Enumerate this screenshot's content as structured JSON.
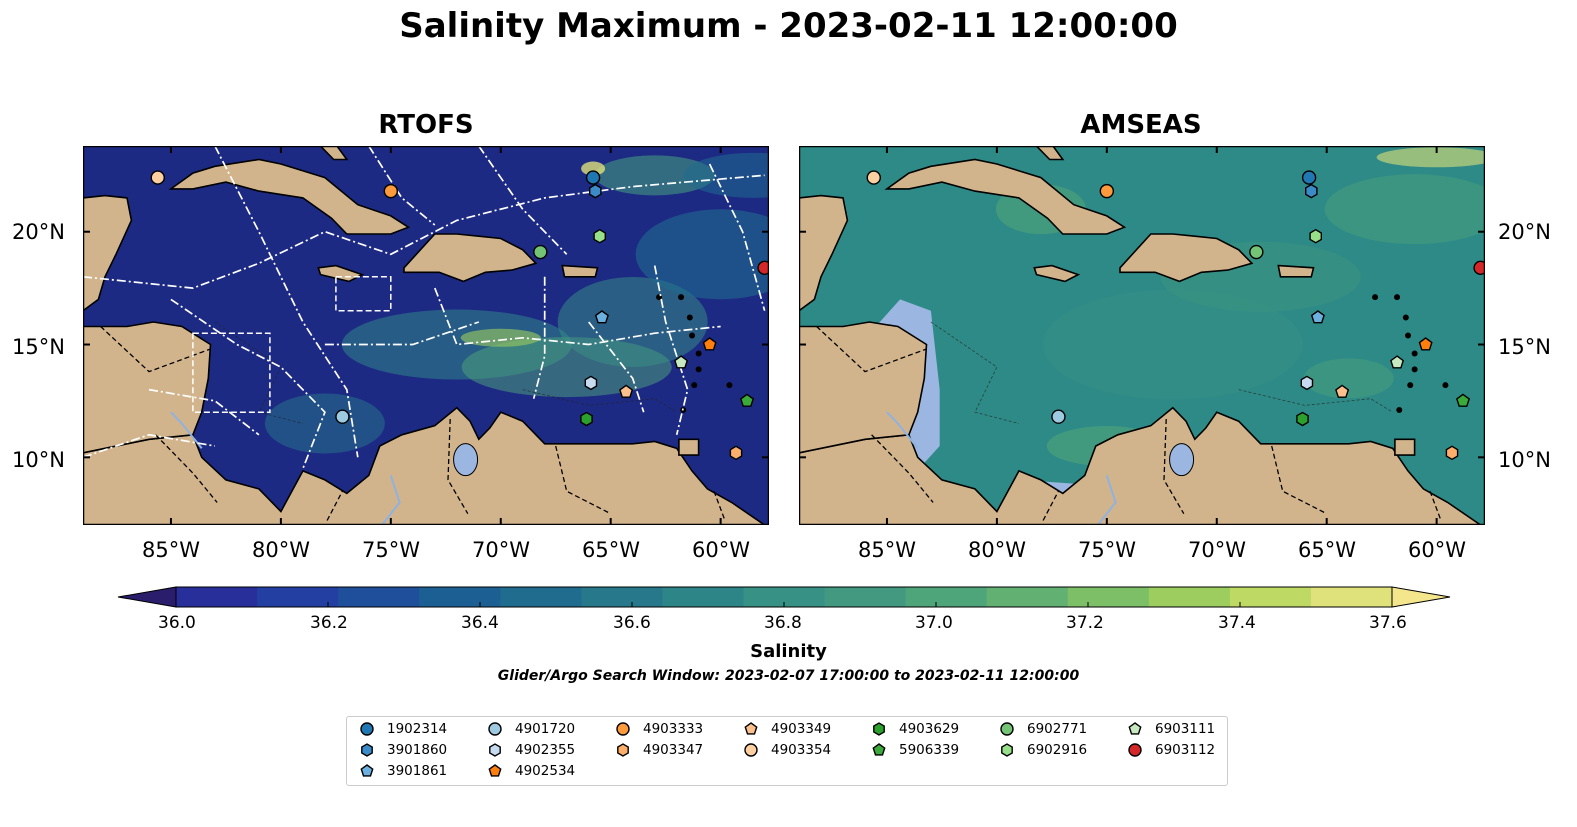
{
  "title": "Salinity Maximum - 2023-02-11 12:00:00",
  "panels": [
    {
      "name": "RTOFS"
    },
    {
      "name": "AMSEAS"
    }
  ],
  "axis": {
    "lon_labels": [
      "85°W",
      "80°W",
      "75°W",
      "70°W",
      "65°W",
      "60°W"
    ],
    "lat_labels": [
      "20°N",
      "15°N",
      "10°N"
    ]
  },
  "colorbar": {
    "label": "Salinity",
    "min": 36.0,
    "max": 37.6,
    "step": 0.1,
    "tick_labels": [
      "36.0",
      "36.2",
      "36.4",
      "36.6",
      "36.8",
      "37.0",
      "37.2",
      "37.4",
      "37.6"
    ],
    "colors": [
      "#2a1d6b",
      "#282e9a",
      "#233fa2",
      "#1f4f9a",
      "#1c5f93",
      "#1f6c8e",
      "#26788a",
      "#2e8587",
      "#379184",
      "#42997f",
      "#4fa57a",
      "#62b173",
      "#7dbf67",
      "#9ccd5e",
      "#bfd965",
      "#dfe17a",
      "#f4e68c"
    ]
  },
  "search_window": "Glider/Argo Search Window: 2023-02-07 17:00:00 to 2023-02-11 12:00:00",
  "colors": {
    "land": "#d2b48c",
    "lake": "#9bb6e0",
    "rtofs_ocean": "#1d2a84",
    "amseas_ocean": "#2e8a86"
  },
  "floats": [
    {
      "id": "1902314",
      "shape": "circle",
      "color": "#1f77b4",
      "lon": -65.8,
      "lat": 22.4
    },
    {
      "id": "3901860",
      "shape": "hexagon",
      "color": "#3b8bc8",
      "lon": -65.7,
      "lat": 21.8
    },
    {
      "id": "3901861",
      "shape": "pentagon",
      "color": "#6cb0e0",
      "lon": -65.4,
      "lat": 16.2
    },
    {
      "id": "4901720",
      "shape": "circle",
      "color": "#9ecae1",
      "lon": -77.2,
      "lat": 11.8
    },
    {
      "id": "4902355",
      "shape": "hexagon",
      "color": "#c6dbef",
      "lon": -65.9,
      "lat": 13.3
    },
    {
      "id": "4902534",
      "shape": "pentagon",
      "color": "#ff7f0e",
      "lon": -60.5,
      "lat": 15.0
    },
    {
      "id": "4903333",
      "shape": "circle",
      "color": "#fd9a3c",
      "lon": -75.0,
      "lat": 21.8
    },
    {
      "id": "4903347",
      "shape": "hexagon",
      "color": "#fdae6b",
      "lon": -59.3,
      "lat": 10.2
    },
    {
      "id": "4903349",
      "shape": "pentagon",
      "color": "#fdc08d",
      "lon": -64.3,
      "lat": 12.9
    },
    {
      "id": "4903354",
      "shape": "circle",
      "color": "#fdd0a2",
      "lon": -85.6,
      "lat": 22.4
    },
    {
      "id": "4903629",
      "shape": "hexagon",
      "color": "#2ca02c",
      "lon": -66.1,
      "lat": 11.7
    },
    {
      "id": "5906339",
      "shape": "pentagon",
      "color": "#3aaa3a",
      "lon": -58.8,
      "lat": 12.5
    },
    {
      "id": "6902771",
      "shape": "circle",
      "color": "#74c476",
      "lon": -68.2,
      "lat": 19.1
    },
    {
      "id": "6902916",
      "shape": "hexagon",
      "color": "#98df8a",
      "lon": -65.5,
      "lat": 19.8
    },
    {
      "id": "6903111",
      "shape": "pentagon",
      "color": "#c7e9c0",
      "lon": -61.8,
      "lat": 14.2
    },
    {
      "id": "6903112",
      "shape": "circle",
      "color": "#d62728",
      "lon": -58.0,
      "lat": 18.4
    }
  ]
}
